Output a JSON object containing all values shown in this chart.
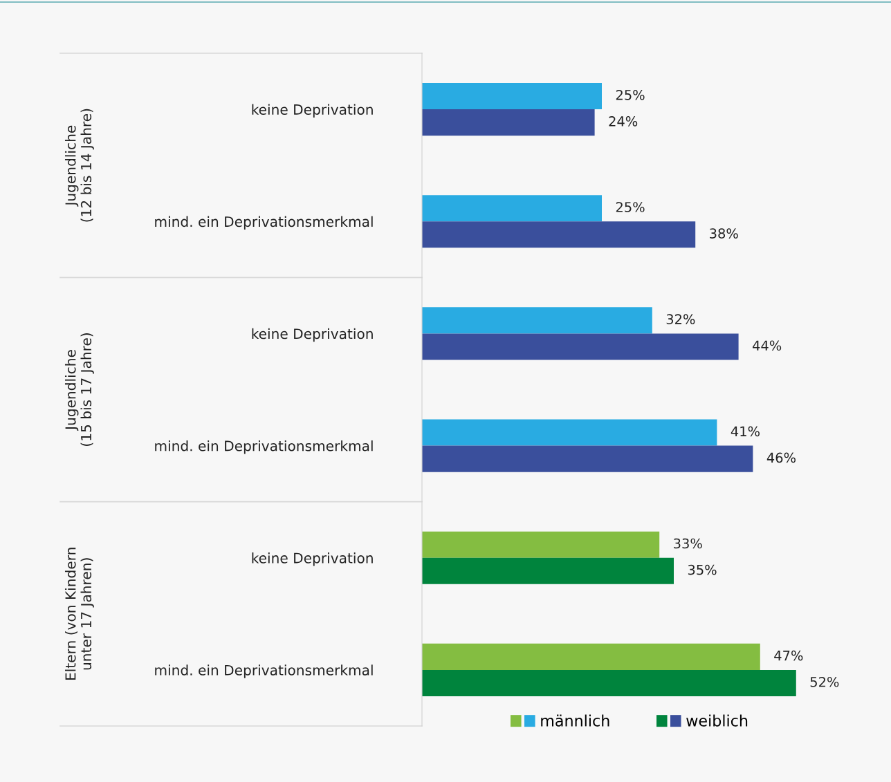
{
  "chart_data": {
    "type": "bar",
    "orientation": "horizontal",
    "categories": [
      "keine Deprivation",
      "mind. ein Deprivationsmerkmal",
      "keine Deprivation",
      "mind. ein Deprivationsmerkmal",
      "keine Deprivation",
      "mind. ein Deprivationsmerkmal"
    ],
    "series": [
      {
        "name": "männlich",
        "colors": [
          "#29abe2",
          "#29abe2",
          "#29abe2",
          "#29abe2",
          "#84bd41",
          "#84bd41"
        ],
        "values": [
          25,
          25,
          32,
          41,
          33,
          47
        ],
        "value_labels": [
          "25%",
          "25%",
          "32%",
          "41%",
          "33%",
          "47%"
        ]
      },
      {
        "name": "weiblich",
        "colors": [
          "#3a4f9c",
          "#3a4f9c",
          "#3a4f9c",
          "#3a4f9c",
          "#00843d",
          "#00843d"
        ],
        "values": [
          24,
          38,
          44,
          46,
          35,
          52
        ],
        "value_labels": [
          "24%",
          "38%",
          "44%",
          "46%",
          "35%",
          "52%"
        ]
      }
    ],
    "annotations": [
      "Jugendliche\n(12 bis 14 Jahre)",
      "Jugendliche\n(15 bis 17 Jahre)",
      "Eltern (von Kindern\nunter 17 Jahren)"
    ],
    "legend": "bottom",
    "grid": false
  }
}
